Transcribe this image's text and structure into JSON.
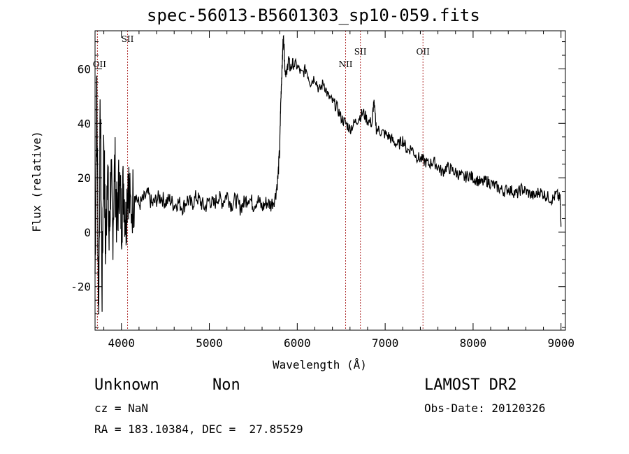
{
  "chart_data": {
    "type": "line",
    "title": "spec-56013-B5601303_sp10-059.fits",
    "xlabel": "Wavelength (Å)",
    "ylabel": "Flux (relative)",
    "xlim": [
      3700,
      9050
    ],
    "ylim": [
      -36,
      74
    ],
    "xticks": [
      4000,
      5000,
      6000,
      7000,
      8000,
      9000
    ],
    "yticks": [
      -20,
      0,
      20,
      40,
      60
    ],
    "grid": false,
    "series": [
      {
        "color": "#000000",
        "x": [
          3700,
          3720,
          3740,
          3760,
          3780,
          3800,
          3820,
          3840,
          3860,
          3880,
          3900,
          3925,
          3950,
          3975,
          4000,
          4025,
          4050,
          4075,
          4100,
          4150,
          4200,
          4250,
          4300,
          4350,
          4400,
          4450,
          4500,
          4550,
          4600,
          4650,
          4700,
          4750,
          4800,
          4850,
          4900,
          4950,
          5000,
          5050,
          5100,
          5150,
          5200,
          5250,
          5300,
          5350,
          5400,
          5450,
          5500,
          5550,
          5600,
          5650,
          5700,
          5750,
          5780,
          5800,
          5810,
          5820,
          5830,
          5840,
          5850,
          5860,
          5880,
          5900,
          5920,
          5950,
          6000,
          6050,
          6100,
          6150,
          6200,
          6250,
          6300,
          6350,
          6400,
          6450,
          6500,
          6550,
          6600,
          6650,
          6700,
          6750,
          6800,
          6850,
          6870,
          6900,
          6950,
          7000,
          7050,
          7100,
          7150,
          7200,
          7250,
          7300,
          7350,
          7400,
          7450,
          7500,
          7550,
          7600,
          7650,
          7700,
          7750,
          7800,
          7850,
          7900,
          7950,
          8000,
          8050,
          8100,
          8150,
          8200,
          8250,
          8300,
          8350,
          8400,
          8450,
          8500,
          8550,
          8600,
          8650,
          8700,
          8750,
          8800,
          8850,
          8900,
          8950,
          8990,
          9000
        ],
        "y": [
          -15,
          55,
          -30,
          45,
          -20,
          35,
          -10,
          28,
          -5,
          22,
          0,
          25,
          2,
          20,
          5,
          18,
          3,
          22,
          8,
          15,
          10,
          12,
          14,
          10,
          12,
          13,
          11,
          12,
          10,
          11,
          9,
          12,
          10,
          13,
          11,
          9,
          12,
          10,
          13,
          11,
          14,
          10,
          12,
          9,
          11,
          13,
          10,
          12,
          9,
          11,
          10,
          13,
          20,
          30,
          45,
          55,
          62,
          72,
          68,
          60,
          58,
          64,
          60,
          62,
          61,
          58,
          60,
          55,
          57,
          52,
          55,
          50,
          48,
          46,
          42,
          40,
          38,
          40,
          42,
          44,
          41,
          40,
          48,
          38,
          37,
          36,
          35,
          33,
          32,
          34,
          30,
          31,
          28,
          27,
          26,
          25,
          26,
          24,
          22,
          24,
          23,
          22,
          21,
          20,
          21,
          20,
          19,
          18,
          19,
          18,
          17,
          16,
          15,
          16,
          15,
          14,
          16,
          15,
          14,
          13,
          15,
          14,
          13,
          12,
          14,
          12,
          2
        ]
      }
    ],
    "lines": [
      {
        "label": "OII",
        "x": 3727
      },
      {
        "label": "SII",
        "x": 4070
      },
      {
        "label": "NII",
        "x": 6550
      },
      {
        "label": "SII",
        "x": 6718
      },
      {
        "label": "OII",
        "x": 7430
      }
    ]
  },
  "footer": {
    "class": "Unknown",
    "subclass": "Non",
    "survey": "LAMOST DR2",
    "cz": "cz = NaN",
    "obs_date": "Obs-Date: 20120326",
    "coords": "RA = 183.10384, DEC =  27.85529"
  }
}
